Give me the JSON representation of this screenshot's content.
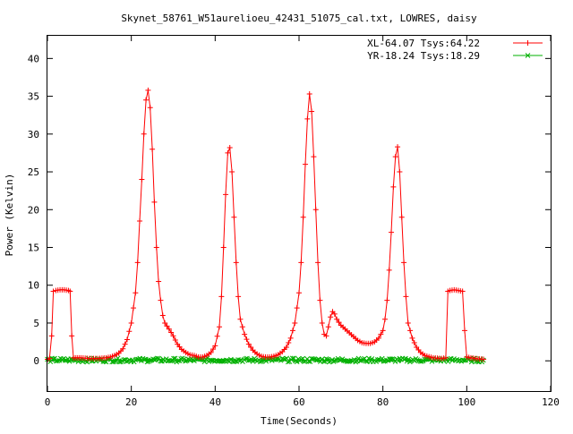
{
  "chart_data": {
    "type": "line",
    "title": "Skynet_58761_W51aurelioeu_42431_51075_cal.txt, LOWRES, daisy",
    "xlabel": "Time(Seconds)",
    "ylabel": "Power (Kelvin)",
    "xlim": [
      0,
      120
    ],
    "ylim": [
      -4,
      43
    ],
    "xticks": [
      0,
      20,
      40,
      60,
      80,
      100,
      120
    ],
    "yticks": [
      0,
      5,
      10,
      15,
      20,
      25,
      30,
      35,
      40
    ],
    "grid": false,
    "legend_position": "top-right",
    "series": [
      {
        "name": "XL-64.07 Tsys:64.22",
        "color": "#ff0000",
        "marker": "plus",
        "points": [
          [
            0,
            0.2
          ],
          [
            0.5,
            0.3
          ],
          [
            1,
            3.3
          ],
          [
            1.4,
            9.2
          ],
          [
            2,
            9.3
          ],
          [
            3,
            9.4
          ],
          [
            4,
            9.4
          ],
          [
            5,
            9.3
          ],
          [
            5.4,
            9.2
          ],
          [
            5.8,
            3.3
          ],
          [
            6.2,
            0.4
          ],
          [
            8,
            0.4
          ],
          [
            10,
            0.3
          ],
          [
            12,
            0.3
          ],
          [
            14,
            0.4
          ],
          [
            15,
            0.5
          ],
          [
            16,
            0.7
          ],
          [
            17,
            1.0
          ],
          [
            18,
            1.6
          ],
          [
            19,
            2.8
          ],
          [
            20,
            5.0
          ],
          [
            21,
            9.0
          ],
          [
            21.5,
            13.0
          ],
          [
            22,
            18.5
          ],
          [
            22.5,
            24.0
          ],
          [
            23,
            30.0
          ],
          [
            23.5,
            34.5
          ],
          [
            24,
            35.8
          ],
          [
            24.5,
            33.5
          ],
          [
            25,
            28.0
          ],
          [
            25.5,
            21.0
          ],
          [
            26,
            15.0
          ],
          [
            26.5,
            10.5
          ],
          [
            27,
            8.0
          ],
          [
            27.5,
            6.0
          ],
          [
            28,
            5.0
          ],
          [
            29,
            4.2
          ],
          [
            30,
            3.3
          ],
          [
            31,
            2.2
          ],
          [
            32,
            1.5
          ],
          [
            33,
            1.1
          ],
          [
            34,
            0.8
          ],
          [
            35,
            0.7
          ],
          [
            36,
            0.5
          ],
          [
            37,
            0.5
          ],
          [
            38,
            0.7
          ],
          [
            39,
            1.1
          ],
          [
            40,
            2.0
          ],
          [
            41,
            4.5
          ],
          [
            41.5,
            8.5
          ],
          [
            42,
            15.0
          ],
          [
            42.5,
            22.0
          ],
          [
            43,
            27.5
          ],
          [
            43.5,
            28.2
          ],
          [
            44,
            25.0
          ],
          [
            44.5,
            19.0
          ],
          [
            45,
            13.0
          ],
          [
            45.5,
            8.5
          ],
          [
            46,
            5.5
          ],
          [
            47,
            3.5
          ],
          [
            48,
            2.2
          ],
          [
            49,
            1.4
          ],
          [
            50,
            0.9
          ],
          [
            51,
            0.6
          ],
          [
            52,
            0.5
          ],
          [
            53,
            0.5
          ],
          [
            54,
            0.6
          ],
          [
            55,
            0.8
          ],
          [
            56,
            1.2
          ],
          [
            57,
            1.8
          ],
          [
            58,
            3.0
          ],
          [
            59,
            5.0
          ],
          [
            60,
            9.0
          ],
          [
            60.5,
            13.0
          ],
          [
            61,
            19.0
          ],
          [
            61.5,
            26.0
          ],
          [
            62,
            32.0
          ],
          [
            62.5,
            35.3
          ],
          [
            63,
            33.0
          ],
          [
            63.5,
            27.0
          ],
          [
            64,
            20.0
          ],
          [
            64.5,
            13.0
          ],
          [
            65,
            8.0
          ],
          [
            65.5,
            5.0
          ],
          [
            66,
            3.5
          ],
          [
            66.5,
            3.3
          ],
          [
            67,
            4.5
          ],
          [
            67.5,
            5.8
          ],
          [
            68,
            6.5
          ],
          [
            68.5,
            6.2
          ],
          [
            69,
            5.5
          ],
          [
            70,
            4.7
          ],
          [
            71,
            4.2
          ],
          [
            72,
            3.7
          ],
          [
            73,
            3.2
          ],
          [
            74,
            2.7
          ],
          [
            75,
            2.4
          ],
          [
            76,
            2.3
          ],
          [
            77,
            2.3
          ],
          [
            78,
            2.5
          ],
          [
            79,
            3.0
          ],
          [
            80,
            4.0
          ],
          [
            80.5,
            5.5
          ],
          [
            81,
            8.0
          ],
          [
            81.5,
            12.0
          ],
          [
            82,
            17.0
          ],
          [
            82.5,
            23.0
          ],
          [
            83,
            27.0
          ],
          [
            83.5,
            28.3
          ],
          [
            84,
            25.0
          ],
          [
            84.5,
            19.0
          ],
          [
            85,
            13.0
          ],
          [
            85.5,
            8.5
          ],
          [
            86,
            5.0
          ],
          [
            87,
            3.0
          ],
          [
            88,
            1.8
          ],
          [
            89,
            1.1
          ],
          [
            90,
            0.7
          ],
          [
            92,
            0.4
          ],
          [
            94,
            0.3
          ],
          [
            95,
            0.4
          ],
          [
            95.5,
            9.2
          ],
          [
            96,
            9.3
          ],
          [
            97,
            9.4
          ],
          [
            98,
            9.3
          ],
          [
            99,
            9.2
          ],
          [
            99.5,
            4.0
          ],
          [
            100,
            0.5
          ],
          [
            102,
            0.3
          ],
          [
            104,
            0.2
          ]
        ]
      },
      {
        "name": "YR-18.24 Tsys:18.29",
        "color": "#00b000",
        "marker": "cross",
        "points": [
          [
            0,
            0.1
          ],
          [
            104,
            0.1
          ]
        ],
        "noise_amplitude": 0.25
      }
    ]
  }
}
